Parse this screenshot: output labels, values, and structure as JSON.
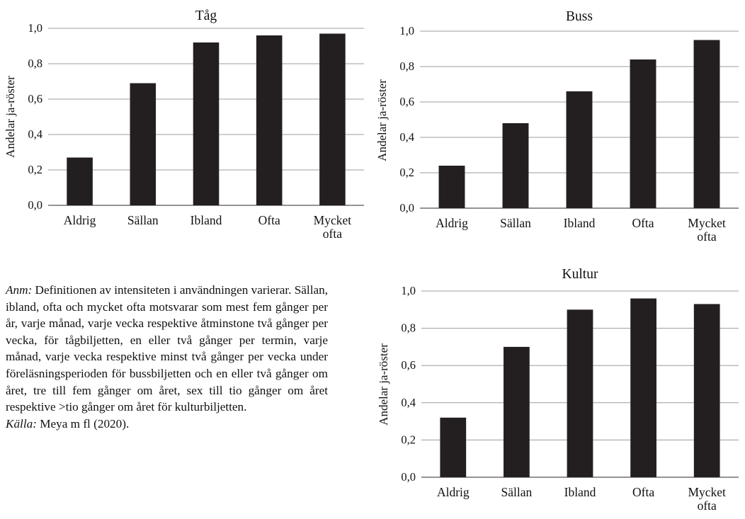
{
  "chart_data": [
    {
      "type": "bar",
      "title": "Tåg",
      "xlabel": "",
      "ylabel": "Andelar ja-röster",
      "categories": [
        "Aldrig",
        "Sällan",
        "Ibland",
        "Ofta",
        "Mycket ofta"
      ],
      "category_lines": [
        [
          "Aldrig"
        ],
        [
          "Sällan"
        ],
        [
          "Ibland"
        ],
        [
          "Ofta"
        ],
        [
          "Mycket",
          "ofta"
        ]
      ],
      "values": [
        0.27,
        0.69,
        0.92,
        0.96,
        0.97
      ],
      "ylim": [
        0,
        1.0
      ],
      "yticks": [
        "0,0",
        "0,2",
        "0,4",
        "0,6",
        "0,8",
        "1,0"
      ],
      "grid": true,
      "bar_color": "#231f20"
    },
    {
      "type": "bar",
      "title": "Buss",
      "xlabel": "",
      "ylabel": "Andelar ja-röster",
      "categories": [
        "Aldrig",
        "Sällan",
        "Ibland",
        "Ofta",
        "Mycket ofta"
      ],
      "category_lines": [
        [
          "Aldrig"
        ],
        [
          "Sällan"
        ],
        [
          "Ibland"
        ],
        [
          "Ofta"
        ],
        [
          "Mycket",
          "ofta"
        ]
      ],
      "values": [
        0.24,
        0.48,
        0.66,
        0.84,
        0.95
      ],
      "ylim": [
        0,
        1.0
      ],
      "yticks": [
        "0,0",
        "0,2",
        "0,4",
        "0,6",
        "0,8",
        "1,0"
      ],
      "grid": true,
      "bar_color": "#231f20"
    },
    {
      "type": "bar",
      "title": "Kultur",
      "xlabel": "",
      "ylabel": "Andelar ja-röster",
      "categories": [
        "Aldrig",
        "Sällan",
        "Ibland",
        "Ofta",
        "Mycket ofta"
      ],
      "category_lines": [
        [
          "Aldrig"
        ],
        [
          "Sällan"
        ],
        [
          "Ibland"
        ],
        [
          "Ofta"
        ],
        [
          "Mycket",
          "ofta"
        ]
      ],
      "values": [
        0.32,
        0.7,
        0.9,
        0.96,
        0.93
      ],
      "ylim": [
        0,
        1.0
      ],
      "yticks": [
        "0,0",
        "0,2",
        "0,4",
        "0,6",
        "0,8",
        "1,0"
      ],
      "grid": true,
      "bar_color": "#231f20"
    }
  ],
  "note": {
    "anm_label": "Anm:",
    "anm_text": " Definitionen av intensiteten i användningen varierar. Sällan, ibland, ofta och mycket ofta motsvarar som mest fem gånger per år, varje månad, varje vecka respektive åtminstone två gånger per vecka, för tågbiljetten, en eller två gånger per termin, varje månad, varje vecka respektive minst två gånger per vecka under föreläsningsperioden för bussbiljetten och en eller två gånger om året, tre till fem gånger om året, sex till tio gånger om året respektive >tio gånger om året för kulturbiljetten.",
    "source_label": "Källa:",
    "source_text": " Meya m fl (2020)."
  }
}
